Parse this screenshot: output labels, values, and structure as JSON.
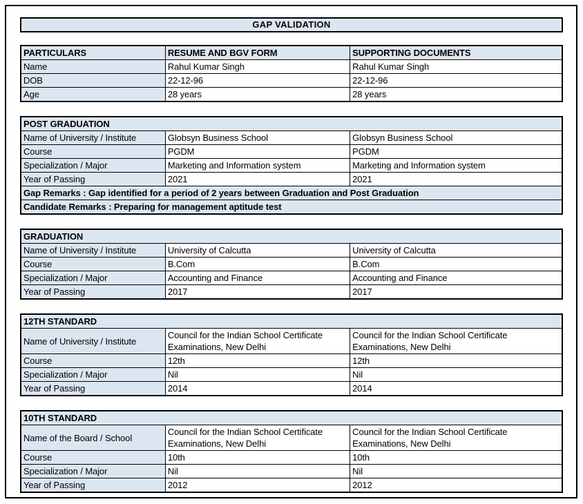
{
  "page": {
    "title": "GAP VALIDATION"
  },
  "colors": {
    "band_fill": "#dce6f1",
    "border": "#000000",
    "text": "#000000",
    "background": "#ffffff"
  },
  "particulars": {
    "headers": [
      "PARTICULARS",
      "RESUME AND BGV FORM",
      "SUPPORTING DOCUMENTS"
    ],
    "rows": [
      {
        "label": "Name",
        "resume": "Rahul Kumar Singh",
        "supporting": "Rahul Kumar Singh"
      },
      {
        "label": "DOB",
        "resume": "22-12-96",
        "supporting": "22-12-96"
      },
      {
        "label": "Age",
        "resume": "28 years",
        "supporting": "28 years"
      }
    ]
  },
  "sections": [
    {
      "title": "POST GRADUATION",
      "rows": [
        {
          "label": "Name of University / Institute",
          "resume": "Globsyn Business School",
          "supporting": "Globsyn Business School"
        },
        {
          "label": "Course",
          "resume": "PGDM",
          "supporting": "PGDM"
        },
        {
          "label": "Specialization / Major",
          "resume": "Marketing and Information system",
          "supporting": "Marketing and Information system"
        },
        {
          "label": "Year of Passing",
          "resume": "2021",
          "supporting": "2021"
        }
      ],
      "remarks": [
        "Gap Remarks : Gap identified for a period of 2 years between Graduation and Post Graduation",
        "Candidate Remarks : Preparing for management aptitude test"
      ]
    },
    {
      "title": "GRADUATION",
      "rows": [
        {
          "label": "Name of University / Institute",
          "resume": "University of Calcutta",
          "supporting": "University of Calcutta"
        },
        {
          "label": "Course",
          "resume": "B.Com",
          "supporting": "B.Com"
        },
        {
          "label": "Specialization / Major",
          "resume": "Accounting and Finance",
          "supporting": "Accounting and Finance"
        },
        {
          "label": "Year of Passing",
          "resume": "2017",
          "supporting": "2017"
        }
      ],
      "remarks": []
    },
    {
      "title": "12TH STANDARD",
      "rows": [
        {
          "label": "Name of University / Institute",
          "resume": "Council for the Indian School Certificate Examinations, New Delhi",
          "supporting": "Council for the Indian School Certificate Examinations, New Delhi"
        },
        {
          "label": "Course",
          "resume": "12th",
          "supporting": "12th"
        },
        {
          "label": "Specialization / Major",
          "resume": "Nil",
          "supporting": "Nil"
        },
        {
          "label": "Year of Passing",
          "resume": "2014",
          "supporting": "2014"
        }
      ],
      "remarks": []
    },
    {
      "title": "10TH STANDARD",
      "rows": [
        {
          "label": "Name of the Board / School",
          "resume": "Council for the Indian School Certificate Examinations, New Delhi",
          "supporting": "Council for the Indian School Certificate Examinations, New Delhi"
        },
        {
          "label": "Course",
          "resume": "10th",
          "supporting": "10th"
        },
        {
          "label": "Specialization / Major",
          "resume": "Nil",
          "supporting": "Nil"
        },
        {
          "label": "Year of Passing",
          "resume": "2012",
          "supporting": "2012"
        }
      ],
      "remarks": []
    }
  ]
}
